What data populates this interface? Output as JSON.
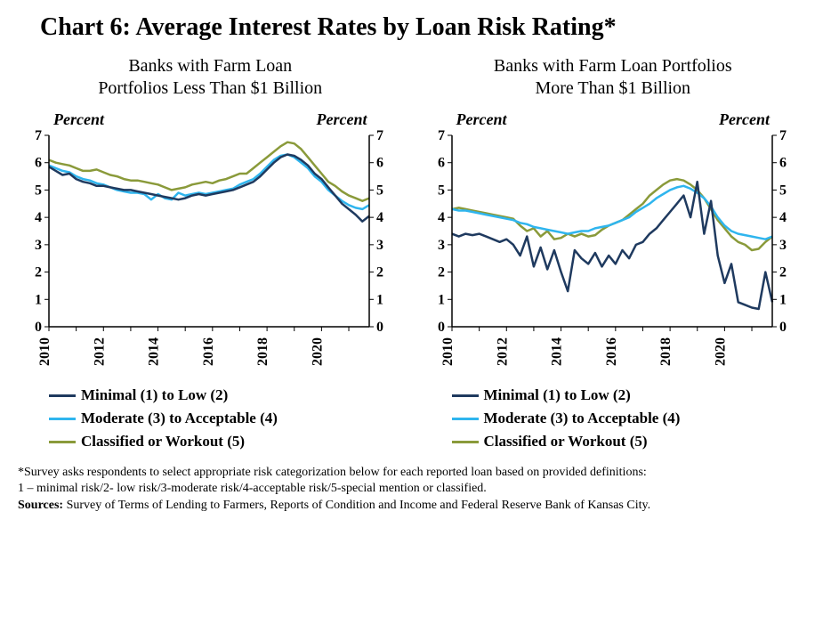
{
  "title": "Chart 6: Average Interest Rates by Loan Risk Rating*",
  "left_chart": {
    "subtitle": "Banks with Farm Loan\nPortfolios Less Than $1 Billion",
    "y_label_left": "Percent",
    "y_label_right": "Percent",
    "ylim": [
      0,
      7
    ],
    "ytick_step": 1,
    "x_years": [
      2010,
      2012,
      2014,
      2016,
      2018,
      2020
    ],
    "series": {
      "minimal": {
        "label": "Minimal (1) to Low (2)",
        "color": "#1f3a5f",
        "width": 2.5,
        "values": [
          5.85,
          5.7,
          5.55,
          5.6,
          5.4,
          5.3,
          5.25,
          5.15,
          5.15,
          5.1,
          5.05,
          5.0,
          5.0,
          4.95,
          4.9,
          4.85,
          4.8,
          4.75,
          4.7,
          4.65,
          4.7,
          4.8,
          4.85,
          4.8,
          4.85,
          4.9,
          4.95,
          5.0,
          5.1,
          5.2,
          5.3,
          5.5,
          5.75,
          6.0,
          6.2,
          6.3,
          6.25,
          6.1,
          5.9,
          5.6,
          5.4,
          5.1,
          4.8,
          4.5,
          4.3,
          4.1,
          3.85,
          4.05
        ]
      },
      "moderate": {
        "label": "Moderate (3) to Acceptable (4)",
        "color": "#2fb5ee",
        "width": 2.5,
        "values": [
          5.9,
          5.8,
          5.7,
          5.65,
          5.5,
          5.4,
          5.35,
          5.25,
          5.2,
          5.1,
          5.0,
          4.95,
          4.9,
          4.9,
          4.85,
          4.65,
          4.85,
          4.7,
          4.65,
          4.9,
          4.8,
          4.85,
          4.9,
          4.85,
          4.9,
          4.95,
          5.0,
          5.05,
          5.2,
          5.3,
          5.4,
          5.6,
          5.85,
          6.1,
          6.25,
          6.3,
          6.2,
          6.0,
          5.8,
          5.5,
          5.3,
          5.0,
          4.8,
          4.6,
          4.45,
          4.35,
          4.3,
          4.45
        ]
      },
      "classified": {
        "label": "Classified or Workout (5)",
        "color": "#8a9a3a",
        "width": 2.5,
        "values": [
          6.1,
          6.0,
          5.95,
          5.9,
          5.8,
          5.7,
          5.7,
          5.75,
          5.65,
          5.55,
          5.5,
          5.4,
          5.35,
          5.35,
          5.3,
          5.25,
          5.2,
          5.1,
          5.0,
          5.05,
          5.1,
          5.2,
          5.25,
          5.3,
          5.25,
          5.35,
          5.4,
          5.5,
          5.6,
          5.6,
          5.8,
          6.0,
          6.2,
          6.4,
          6.6,
          6.75,
          6.7,
          6.5,
          6.2,
          5.9,
          5.6,
          5.3,
          5.15,
          4.95,
          4.8,
          4.7,
          4.6,
          4.7
        ]
      }
    }
  },
  "right_chart": {
    "subtitle": "Banks with Farm Loan Portfolios\nMore Than $1 Billion",
    "y_label_left": "Percent",
    "y_label_right": "Percent",
    "ylim": [
      0,
      7
    ],
    "ytick_step": 1,
    "x_years": [
      2010,
      2012,
      2014,
      2016,
      2018,
      2020
    ],
    "series": {
      "minimal": {
        "label": "Minimal (1) to Low (2)",
        "color": "#1f3a5f",
        "width": 2.5,
        "values": [
          3.4,
          3.3,
          3.4,
          3.35,
          3.4,
          3.3,
          3.2,
          3.1,
          3.2,
          3.0,
          2.6,
          3.3,
          2.2,
          2.9,
          2.1,
          2.8,
          2.0,
          1.3,
          2.8,
          2.5,
          2.3,
          2.7,
          2.2,
          2.6,
          2.3,
          2.8,
          2.5,
          3.0,
          3.1,
          3.4,
          3.6,
          3.9,
          4.2,
          4.5,
          4.8,
          4.0,
          5.3,
          3.4,
          4.6,
          2.6,
          1.6,
          2.3,
          0.9,
          0.8,
          0.7,
          0.65,
          2.0,
          0.9
        ]
      },
      "moderate": {
        "label": "Moderate (3) to Acceptable (4)",
        "color": "#2fb5ee",
        "width": 2.5,
        "values": [
          4.3,
          4.25,
          4.25,
          4.2,
          4.15,
          4.1,
          4.05,
          4.0,
          3.95,
          3.9,
          3.8,
          3.75,
          3.65,
          3.6,
          3.55,
          3.5,
          3.45,
          3.4,
          3.45,
          3.5,
          3.5,
          3.6,
          3.65,
          3.7,
          3.8,
          3.9,
          4.0,
          4.2,
          4.35,
          4.5,
          4.7,
          4.85,
          5.0,
          5.1,
          5.15,
          5.05,
          4.9,
          4.7,
          4.4,
          4.0,
          3.7,
          3.5,
          3.4,
          3.35,
          3.3,
          3.25,
          3.2,
          3.3
        ]
      },
      "classified": {
        "label": "Classified or Workout (5)",
        "color": "#8a9a3a",
        "width": 2.5,
        "values": [
          4.3,
          4.35,
          4.3,
          4.25,
          4.2,
          4.15,
          4.1,
          4.05,
          4.0,
          3.95,
          3.7,
          3.5,
          3.6,
          3.3,
          3.5,
          3.2,
          3.25,
          3.4,
          3.3,
          3.4,
          3.3,
          3.35,
          3.55,
          3.7,
          3.8,
          3.9,
          4.1,
          4.3,
          4.5,
          4.8,
          5.0,
          5.2,
          5.35,
          5.4,
          5.35,
          5.2,
          5.0,
          4.7,
          4.3,
          3.9,
          3.6,
          3.3,
          3.1,
          3.0,
          2.8,
          2.85,
          3.1,
          3.3
        ]
      }
    }
  },
  "legend": {
    "items": [
      {
        "key": "minimal",
        "label": "Minimal (1) to Low (2)",
        "color": "#1f3a5f"
      },
      {
        "key": "moderate",
        "label": "Moderate (3) to Acceptable (4)",
        "color": "#2fb5ee"
      },
      {
        "key": "classified",
        "label": "Classified or Workout (5)",
        "color": "#8a9a3a"
      }
    ]
  },
  "footnote": "*Survey asks respondents to select appropriate risk categorization below for each reported loan based on provided definitions:\n1 – minimal risk/2- low risk/3-moderate risk/4-acceptable risk/5-special mention or classified.",
  "sources_label": "Sources:",
  "sources_text": " Survey of Terms of Lending to Farmers, Reports of Condition and Income and Federal Reserve Bank of Kansas City.",
  "chart_style": {
    "axis_color": "#000000",
    "tick_color": "#000000",
    "background": "#ffffff",
    "axis_width": 1.5,
    "tick_length": 5,
    "tick_font_size": 16,
    "tick_font_weight": "bold"
  }
}
